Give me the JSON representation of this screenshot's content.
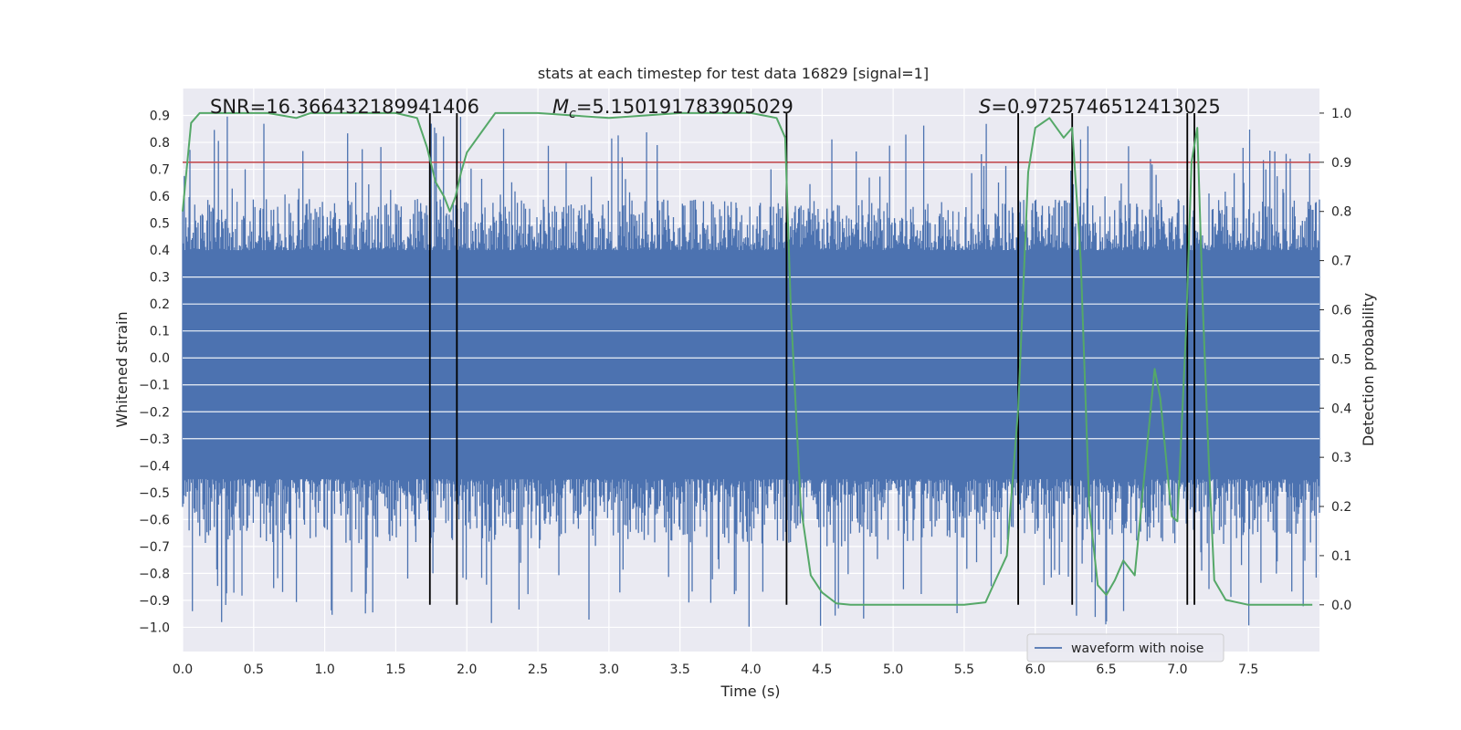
{
  "chart_data": {
    "type": "line",
    "title": "stats at each timestep for test data 16829 [signal=1]",
    "xlabel": "Time (s)",
    "ylabel_left": "Whitened strain",
    "ylabel_right": "Detection probability",
    "xlim": [
      0.0,
      8.0
    ],
    "ylim_left": [
      -1.09,
      1.0
    ],
    "ylim_right": [
      -0.095,
      1.05
    ],
    "x_ticks": [
      "0.0",
      "0.5",
      "1.0",
      "1.5",
      "2.0",
      "2.5",
      "3.0",
      "3.5",
      "4.0",
      "4.5",
      "5.0",
      "5.5",
      "6.0",
      "6.5",
      "7.0",
      "7.5"
    ],
    "y_left_ticks": [
      "0.9",
      "0.8",
      "0.7",
      "0.6",
      "0.5",
      "0.4",
      "0.3",
      "0.2",
      "0.1",
      "0.0",
      "−0.1",
      "−0.2",
      "−0.3",
      "−0.4",
      "−0.5",
      "−0.6",
      "−0.7",
      "−0.8",
      "−0.9",
      "−1.0"
    ],
    "y_right_ticks": [
      "1.0",
      "0.9",
      "0.8",
      "0.7",
      "0.6",
      "0.5",
      "0.4",
      "0.3",
      "0.2",
      "0.1",
      "0.0"
    ],
    "grid": true,
    "legend": {
      "position": "bottom-right",
      "entries": [
        "waveform with noise"
      ]
    },
    "annotations": {
      "snr": "SNR=16.366432189941406",
      "mc_symbol": "M",
      "mc_sub": "c",
      "mc_value": "=5.150191783905029",
      "s_symbol": "S",
      "s_value": "=0.9725746512413025"
    },
    "series": [
      {
        "name": "waveform with noise",
        "axis": "left",
        "color": "#4c72b0",
        "envelope": {
          "core_amplitude": 0.33,
          "typical_peak": 0.55,
          "max_positive": 0.9,
          "min_negative": -1.0
        }
      },
      {
        "axis": "right",
        "color": "#55a868",
        "x": [
          0.0,
          0.06,
          0.12,
          0.3,
          0.6,
          0.8,
          0.9,
          1.2,
          1.5,
          1.65,
          1.72,
          1.78,
          1.84,
          1.88,
          1.92,
          1.96,
          2.0,
          2.1,
          2.2,
          2.5,
          3.0,
          3.5,
          4.0,
          4.18,
          4.24,
          4.28,
          4.35,
          4.42,
          4.5,
          4.6,
          4.7,
          5.0,
          5.5,
          5.65,
          5.72,
          5.8,
          5.88,
          5.95,
          6.0,
          6.1,
          6.2,
          6.26,
          6.32,
          6.38,
          6.44,
          6.5,
          6.56,
          6.62,
          6.7,
          6.78,
          6.84,
          6.88,
          6.92,
          6.96,
          7.0,
          7.06,
          7.1,
          7.14,
          7.18,
          7.22,
          7.26,
          7.34,
          7.5,
          7.95
        ],
        "values": [
          0.8,
          0.98,
          1.0,
          1.0,
          1.0,
          0.99,
          1.0,
          1.0,
          1.0,
          0.99,
          0.93,
          0.86,
          0.83,
          0.8,
          0.83,
          0.88,
          0.92,
          0.96,
          1.0,
          1.0,
          0.99,
          1.0,
          1.0,
          0.99,
          0.95,
          0.6,
          0.2,
          0.06,
          0.025,
          0.003,
          0.0,
          0.0,
          0.0,
          0.005,
          0.05,
          0.1,
          0.4,
          0.88,
          0.97,
          0.99,
          0.95,
          0.97,
          0.7,
          0.2,
          0.04,
          0.02,
          0.05,
          0.09,
          0.06,
          0.3,
          0.48,
          0.42,
          0.3,
          0.18,
          0.17,
          0.55,
          0.9,
          0.97,
          0.6,
          0.3,
          0.05,
          0.01,
          0.0,
          0.0
        ]
      }
    ],
    "threshold": {
      "axis": "right",
      "value": 0.9,
      "color": "#c44e52"
    },
    "vertical_markers": {
      "color": "#000000",
      "x": [
        1.74,
        1.93,
        4.25,
        5.88,
        6.26,
        7.07,
        7.12
      ],
      "from_right": 0.0,
      "to_right": 1.0
    }
  }
}
